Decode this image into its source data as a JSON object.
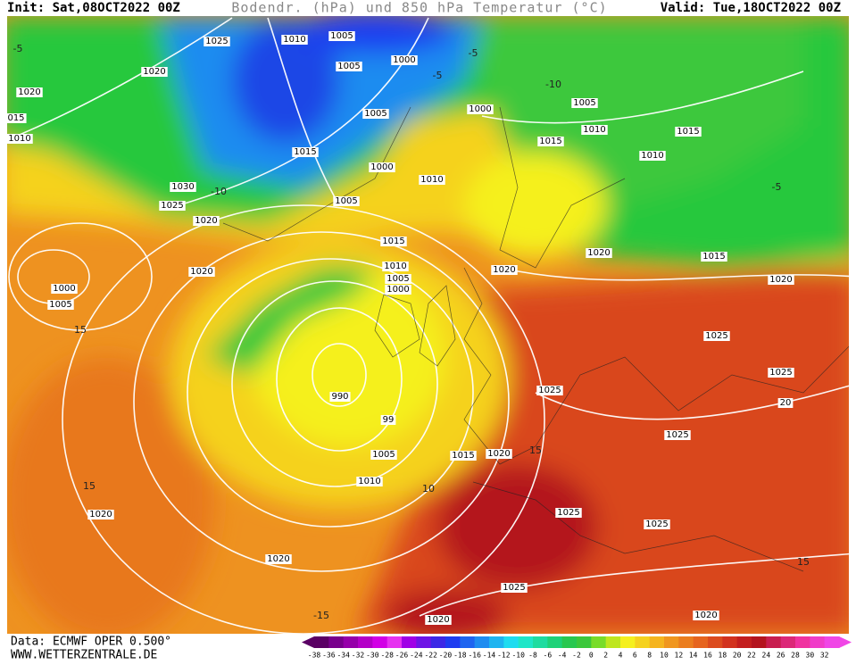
{
  "header": {
    "init": "Init: Sat,08OCT2022 00Z",
    "title": "Bodendr. (hPa) und 850 hPa Temperatur (°C)",
    "valid": "Valid: Tue,18OCT2022 00Z"
  },
  "footer": {
    "source": "Data: ECMWF OPER 0.500°",
    "website": "WWW.WETTERZENTRALE.DE"
  },
  "isobar_labels": [
    "1025",
    "1010",
    "1005",
    "1020",
    "1005",
    "1000",
    "1020",
    "1005",
    "1000",
    "1005",
    "015",
    "1010",
    "1010",
    "1015",
    "1015",
    "1015",
    "1010",
    "1000",
    "1010",
    "1030",
    "1025",
    "1005",
    "1020",
    "1015",
    "1020",
    "1015",
    "1010",
    "1020",
    "1020",
    "1005",
    "1020",
    "1000",
    "1000",
    "1005",
    "1025",
    "1025",
    "1025",
    "990",
    "20",
    "99",
    "1025",
    "1005",
    "1015",
    "1020",
    "1010",
    "1020",
    "1025",
    "1025",
    "1020",
    "1025",
    "1020",
    "1020"
  ],
  "temperature_labels": [
    "-5",
    "-5",
    "-10",
    "-5",
    "-10",
    "15",
    "15",
    "-5",
    "15",
    "15",
    "10",
    "-15"
  ],
  "colorbar": {
    "ticks": [
      -38,
      -36,
      -34,
      -32,
      -30,
      -28,
      -26,
      -24,
      -22,
      -20,
      -18,
      -16,
      -14,
      -12,
      -10,
      -8,
      -6,
      -4,
      -2,
      0,
      2,
      4,
      6,
      8,
      10,
      12,
      14,
      16,
      18,
      20,
      22,
      24,
      26,
      28,
      30,
      32
    ],
    "colors": [
      "#5a0064",
      "#78008c",
      "#9600aa",
      "#b400c8",
      "#d200e6",
      "#e632f0",
      "#a000e6",
      "#6e14e6",
      "#3c28e6",
      "#1e3cf0",
      "#1e64f0",
      "#1e8cf0",
      "#1eb4f0",
      "#1edcf0",
      "#1ee6c8",
      "#1edca0",
      "#1ed278",
      "#28c850",
      "#3cc83c",
      "#78dc28",
      "#bee61e",
      "#f5f01e",
      "#f5d21e",
      "#f5b41e",
      "#f0961e",
      "#eb7d1e",
      "#e6641e",
      "#dc4b1e",
      "#d2321e",
      "#c31e1e",
      "#b4141e",
      "#c81e50",
      "#dc2878",
      "#f032a0",
      "#f03cc8",
      "#f046e6"
    ]
  }
}
